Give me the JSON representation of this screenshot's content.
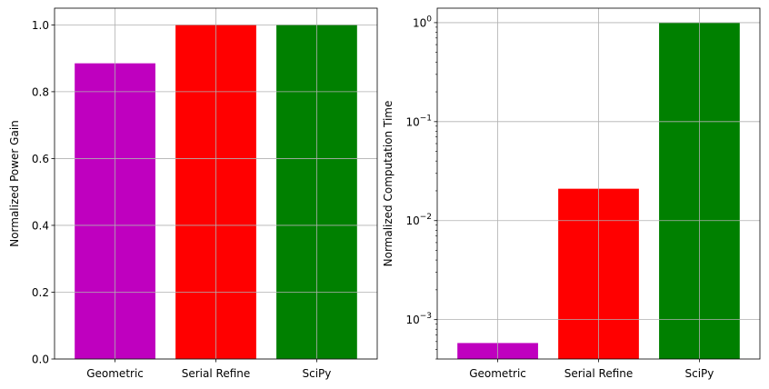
{
  "chart_data": [
    {
      "type": "bar",
      "categories": [
        "Geometric",
        "Serial Refine",
        "SciPy"
      ],
      "values": [
        0.885,
        1.0,
        1.0
      ],
      "colors": [
        "#bf00bf",
        "#ff0000",
        "#008000"
      ],
      "title": "",
      "xlabel": "",
      "ylabel": "Normalized Power Gain",
      "ylim": [
        0,
        1.05
      ],
      "yscale": "linear",
      "yticks": [
        0.0,
        0.2,
        0.4,
        0.6,
        0.8,
        1.0
      ],
      "ytick_labels": [
        "0.0",
        "0.2",
        "0.4",
        "0.6",
        "0.8",
        "1.0"
      ],
      "grid": true
    },
    {
      "type": "bar",
      "categories": [
        "Geometric",
        "Serial Refine",
        "SciPy"
      ],
      "values": [
        0.00058,
        0.021,
        1.0
      ],
      "colors": [
        "#bf00bf",
        "#ff0000",
        "#008000"
      ],
      "title": "",
      "xlabel": "",
      "ylabel": "Normalized Computation Time",
      "ylim": [
        0.0004,
        1.4
      ],
      "yscale": "log",
      "yticks": [
        0.001,
        0.01,
        0.1,
        1
      ],
      "ytick_labels": [
        [
          "10",
          "−3"
        ],
        [
          "10",
          "−2"
        ],
        [
          "10",
          "−1"
        ],
        [
          "10",
          "0"
        ]
      ],
      "grid": true
    }
  ]
}
